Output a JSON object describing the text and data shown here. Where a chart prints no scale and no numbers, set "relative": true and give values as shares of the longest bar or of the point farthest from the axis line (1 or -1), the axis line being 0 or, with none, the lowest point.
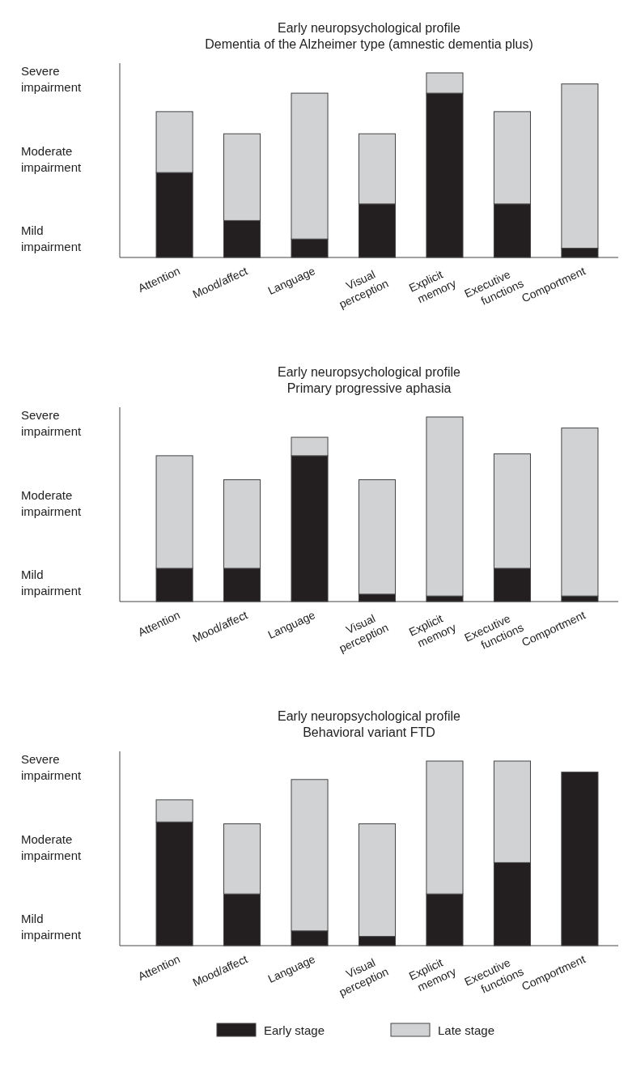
{
  "chart_data": [
    {
      "type": "bar",
      "title": "Early neuropsychological profile",
      "subtitle": "Dementia of the Alzheimer type (amnestic dementia plus)",
      "stacked": true,
      "relative": true,
      "categories": [
        "Attention",
        "Mood/affect",
        "Language",
        "Visual perception",
        "Explicit memory",
        "Executive functions",
        "Comportment"
      ],
      "series": [
        {
          "color": "#231f20",
          "values": [
            0.46,
            0.2,
            0.1,
            0.29,
            0.89,
            0.29,
            0.05
          ]
        },
        {
          "color": "#d1d2d4",
          "values": [
            0.33,
            0.47,
            0.79,
            0.38,
            0.11,
            0.5,
            0.89
          ]
        }
      ],
      "annotations": [
        "Mild impairment",
        "Moderate impairment",
        "Severe impairment"
      ]
    },
    {
      "type": "bar",
      "title": "Early neuropsychological profile",
      "subtitle": "Primary progressive aphasia",
      "stacked": true,
      "relative": true,
      "categories": [
        "Attention",
        "Mood/affect",
        "Language",
        "Visual perception",
        "Explicit memory",
        "Executive functions",
        "Comportment"
      ],
      "series": [
        {
          "color": "#231f20",
          "values": [
            0.18,
            0.18,
            0.79,
            0.04,
            0.03,
            0.18,
            0.03
          ]
        },
        {
          "color": "#d1d2d4",
          "values": [
            0.61,
            0.48,
            0.1,
            0.62,
            0.97,
            0.62,
            0.91
          ]
        }
      ],
      "annotations": [
        "Mild impairment",
        "Moderate impairment",
        "Severe impairment"
      ]
    },
    {
      "type": "bar",
      "title": "Early neuropsychological profile",
      "subtitle": "Behavioral variant FTD",
      "stacked": true,
      "relative": true,
      "categories": [
        "Attention",
        "Mood/affect",
        "Language",
        "Visual perception",
        "Explicit memory",
        "Executive functions",
        "Comportment"
      ],
      "series": [
        {
          "name": "Early stage",
          "color": "#231f20",
          "values": [
            0.67,
            0.28,
            0.08,
            0.05,
            0.28,
            0.45,
            0.94
          ]
        },
        {
          "name": "Late stage",
          "color": "#d1d2d4",
          "values": [
            0.12,
            0.38,
            0.82,
            0.61,
            0.72,
            0.55,
            0
          ]
        }
      ],
      "annotations": [
        "Mild impairment",
        "Moderate impairment",
        "Severe impairment"
      ],
      "legend": "bottom"
    }
  ]
}
